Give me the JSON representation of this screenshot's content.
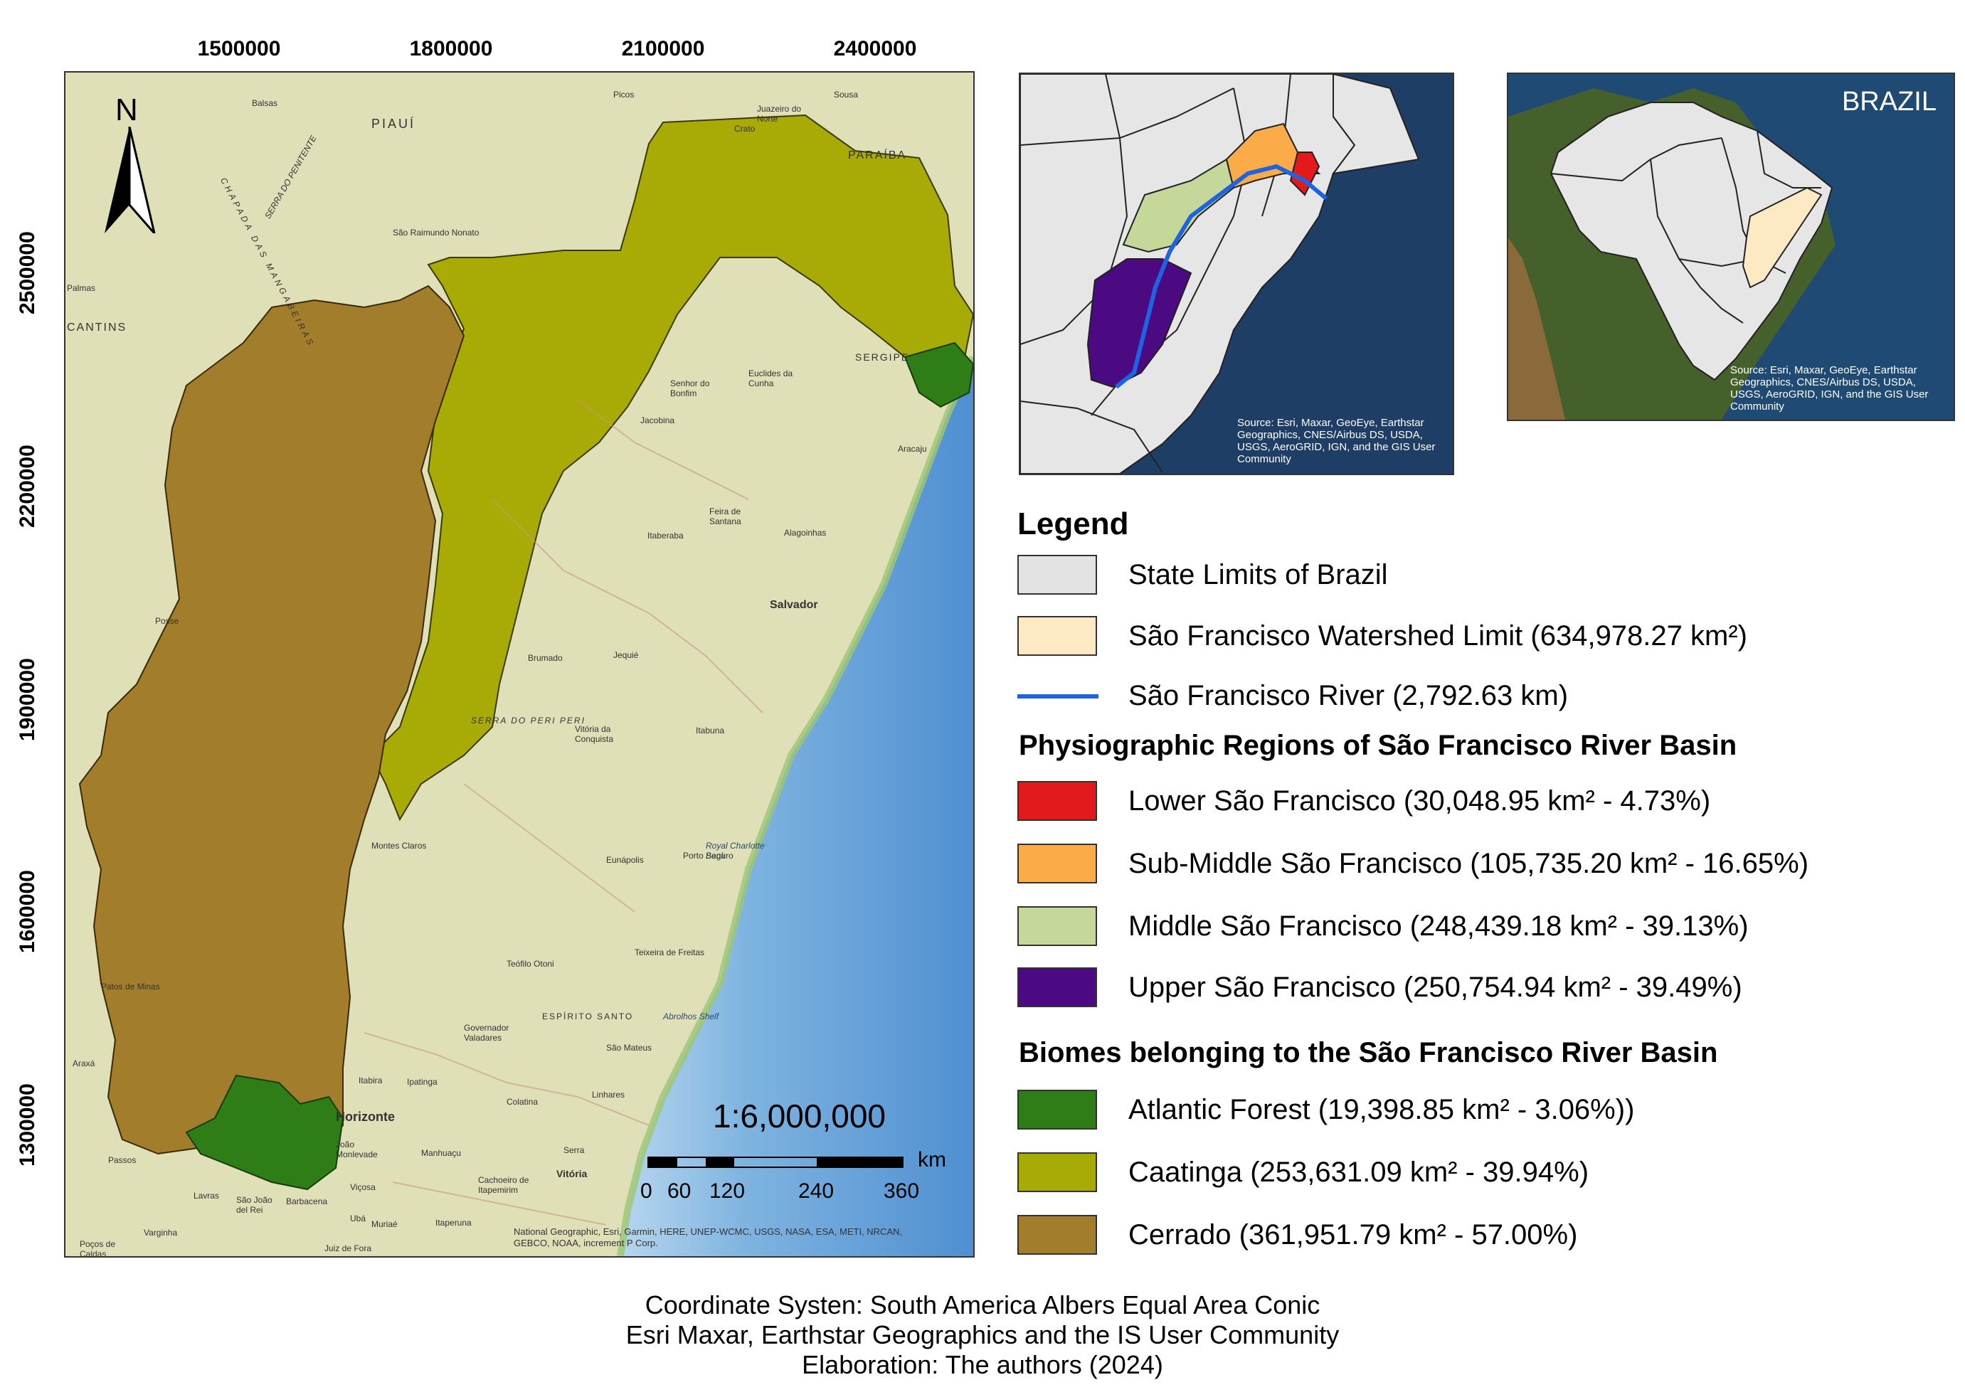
{
  "main_map": {
    "x_ticks": [
      "1500000",
      "1800000",
      "2100000",
      "2400000"
    ],
    "y_ticks": [
      "2500000",
      "2200000",
      "1900000",
      "1600000",
      "1300000"
    ],
    "north_label": "N",
    "scale_text": "1:6,000,000",
    "scale_unit": "km",
    "scale_ticks": [
      "0",
      "60",
      "120",
      "240",
      "360"
    ],
    "attribution": "National Geographic, Esri, Garmin, HERE, UNEP-WCMC, USGS, NASA, ESA, METI, NRCAN, GEBCO, NOAA, increment P Corp.",
    "places": [
      "Balsas",
      "Picos",
      "Juazeiro do Norte",
      "Crato",
      "Sousa",
      "PIAUÍ",
      "PARAÍBA",
      "SERRA DO PENITENTE",
      "CHAPADA DAS MANGABEIRAS",
      "São Raimundo Nonato",
      "Palmas",
      "CANTINS",
      "Senhor do Bonfim",
      "Euclides da Cunha",
      "SERGIPE",
      "Jacobina",
      "Aracaju",
      "Feira de Santana",
      "Alagoinhas",
      "Itaberaba",
      "Salvador",
      "Posse",
      "Brumado",
      "Jequié",
      "SERRA DO PERI PERI",
      "Vitória da Conquista",
      "Itabuna",
      "Royal Charlotte Bank",
      "Eunápolis",
      "Porto Seguro",
      "Montes Claros",
      "Teixeira de Freitas",
      "Abrolhos Shelf",
      "Teófilo Otoni",
      "Patos de Minas",
      "ESPÍRITO SANTO",
      "Governador Valadares",
      "São Mateus",
      "Araxá",
      "Itabira",
      "Ipatinga",
      "Linhares",
      "Colatina",
      "Horizonte",
      "João Monlevade",
      "Manhuaçu",
      "Serra",
      "Vitória",
      "Cachoeiro de Itapemirim",
      "Passos",
      "Lavras",
      "São João del Rei",
      "Barbacena",
      "Viçosa",
      "Ubá",
      "Muriaé",
      "Itaperuna",
      "Varginha",
      "Poços de Caldas",
      "Juiz de Fora"
    ]
  },
  "inset_region": {
    "attribution": "Source: Esri, Maxar, GeoEye, Earthstar Geographics, CNES/Airbus DS, USDA, USGS, AeroGRID, IGN, and the GIS User Community"
  },
  "inset_brazil": {
    "label": "BRAZIL",
    "attribution": "Source: Esri, Maxar, GeoEye, Earthstar Geographics, CNES/Airbus DS, USDA, USGS, AeroGRID, IGN, and the GIS User Community"
  },
  "legend": {
    "title": "Legend",
    "base_items": [
      {
        "label": "State Limits of Brazil",
        "color": "#e3e3e3"
      },
      {
        "label": "São Francisco Watershed Limit (634,978.27 km²)",
        "color": "#fde9c3"
      },
      {
        "label": "São Francisco River (2,792.63 km)",
        "color": "#1e63e0"
      }
    ],
    "physiographic_title": "Physiographic Regions of São Francisco River Basin",
    "physiographic_items": [
      {
        "label": "Lower São Francisco (30,048.95 km² - 4.73%)",
        "color": "#e31a1c"
      },
      {
        "label": "Sub-Middle São Francisco (105,735.20 km² - 16.65%)",
        "color": "#fbac48"
      },
      {
        "label": "Middle São Francisco (248,439.18 km² - 39.13%)",
        "color": "#c5d899"
      },
      {
        "label": "Upper São Francisco (250,754.94 km² - 39.49%)",
        "color": "#4b0a82"
      }
    ],
    "biomes_title": "Biomes belonging to the São Francisco River Basin",
    "biome_items": [
      {
        "label": "Atlantic Forest (19,398.85 km² - 3.06%))",
        "color": "#2e7d17"
      },
      {
        "label": "Caatinga (253,631.09 km² - 39.94%)",
        "color": "#a8ab05"
      },
      {
        "label": "Cerrado (361,951.79 km² - 57.00%)",
        "color": "#a27e2c"
      }
    ]
  },
  "footer": {
    "line1": "Coordinate Systen: South America Albers Equal Area Conic",
    "line2": "Esri Maxar, Earthstar Geographics and the IS User Community",
    "line3": "Elaboration: The authors (2024)"
  }
}
